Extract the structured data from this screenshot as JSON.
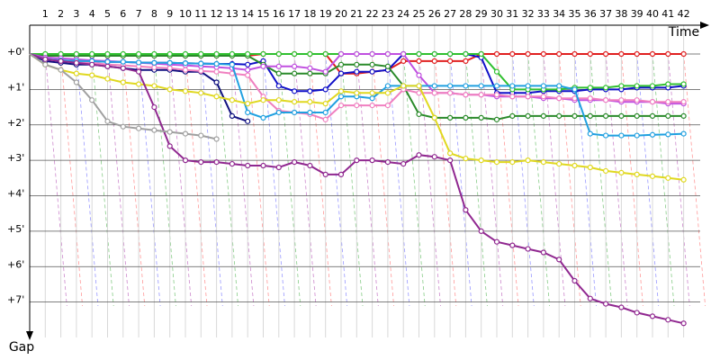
{
  "chart_data": {
    "type": "line",
    "x_label": "Time",
    "y_label": "Gap",
    "categories": [
      null,
      "1",
      "2",
      "3",
      "4",
      "5",
      "6",
      "7",
      "8",
      "9",
      "10",
      "11",
      "12",
      "13",
      "14",
      "15",
      "16",
      "17",
      "18",
      "19",
      "20",
      "21",
      "22",
      "23",
      "24",
      "25",
      "26",
      "27",
      "28",
      "29",
      "30",
      "31",
      "32",
      "33",
      "34",
      "35",
      "36",
      "37",
      "38",
      "39",
      "40",
      "41",
      "42"
    ],
    "ylim": [
      0,
      8
    ],
    "yticks": [
      {
        "value": 0,
        "label": "+0'"
      },
      {
        "value": 1,
        "label": "+1'"
      },
      {
        "value": 2,
        "label": "+2'"
      },
      {
        "value": 3,
        "label": "+3'"
      },
      {
        "value": 4,
        "label": "+4'"
      },
      {
        "value": 5,
        "label": "+5'"
      },
      {
        "value": 6,
        "label": "+6'"
      },
      {
        "value": 7,
        "label": "+7'"
      }
    ],
    "grid": true,
    "series": [
      {
        "color": "#e02020",
        "values": [
          0,
          0.05,
          0.05,
          0.05,
          0.05,
          0.05,
          0.05,
          0.05,
          0.05,
          0.05,
          0.05,
          0.05,
          0.05,
          0.05,
          0.05,
          0,
          0,
          0,
          0,
          0,
          0.55,
          0.55,
          0.5,
          0.45,
          0.2,
          0.2,
          0.2,
          0.2,
          0.2,
          0,
          0,
          0,
          0,
          0,
          0,
          0,
          0,
          0,
          0,
          0,
          0,
          0,
          0
        ]
      },
      {
        "color": "#1010c8",
        "values": [
          0,
          0.15,
          0.18,
          0.2,
          0.2,
          0.22,
          0.22,
          0.24,
          0.25,
          0.25,
          0.26,
          0.27,
          0.28,
          0.28,
          0.3,
          0.2,
          0.9,
          1.05,
          1.05,
          1.0,
          0.55,
          0.5,
          0.5,
          0.45,
          0,
          0,
          0,
          0,
          0,
          0.1,
          1.1,
          1.1,
          1.1,
          1.05,
          1.05,
          1.05,
          1.0,
          1.0,
          1.0,
          0.95,
          0.95,
          0.95,
          0.9
        ]
      },
      {
        "color": "#101080",
        "values": [
          0,
          0.2,
          0.25,
          0.3,
          0.3,
          0.35,
          0.4,
          0.45,
          0.45,
          0.45,
          0.5,
          0.5,
          0.8,
          1.75,
          1.9,
          null,
          null,
          null,
          null,
          null,
          null,
          null,
          null,
          null,
          null,
          null,
          null,
          null,
          null,
          null,
          null,
          null,
          null,
          null,
          null,
          null,
          null,
          null,
          null,
          null,
          null,
          null,
          null
        ]
      },
      {
        "color": "#2a8a2a",
        "values": [
          0,
          0.05,
          0.05,
          0.05,
          0.05,
          0.05,
          0.05,
          0.05,
          0.05,
          0.05,
          0.05,
          0.05,
          0.05,
          0.05,
          0.05,
          0.3,
          0.55,
          0.55,
          0.55,
          0.55,
          0.3,
          0.3,
          0.3,
          0.35,
          0.9,
          1.7,
          1.8,
          1.8,
          1.8,
          1.8,
          1.85,
          1.75,
          1.75,
          1.75,
          1.75,
          1.75,
          1.75,
          1.75,
          1.75,
          1.75,
          1.75,
          1.75,
          1.75
        ]
      },
      {
        "color": "#30c030",
        "values": [
          0,
          0,
          0,
          0,
          0,
          0,
          0,
          0,
          0,
          0,
          0,
          0,
          0,
          0,
          0,
          0,
          0,
          0,
          0,
          0,
          0,
          0,
          0,
          0,
          0,
          0,
          0,
          0,
          0,
          0,
          0.5,
          1.0,
          1.0,
          1.0,
          1.0,
          0.95,
          0.95,
          0.95,
          0.9,
          0.9,
          0.9,
          0.85,
          0.85
        ]
      },
      {
        "color": "#c050e0",
        "values": [
          0,
          0.1,
          0.12,
          0.15,
          0.18,
          0.2,
          0.22,
          0.25,
          0.27,
          0.3,
          0.32,
          0.35,
          0.37,
          0.4,
          0.45,
          0.35,
          0.35,
          0.35,
          0.4,
          0.5,
          0,
          0,
          0,
          0,
          0,
          0.6,
          1.1,
          1.1,
          1.15,
          1.15,
          1.2,
          1.2,
          1.2,
          1.25,
          1.25,
          1.3,
          1.3,
          1.3,
          1.35,
          1.35,
          1.35,
          1.4,
          1.4
        ]
      },
      {
        "color": "#f080c0",
        "values": [
          0,
          0.15,
          0.2,
          0.22,
          0.25,
          0.3,
          0.32,
          0.35,
          0.38,
          0.4,
          0.45,
          0.48,
          0.5,
          0.55,
          0.6,
          1.2,
          1.6,
          1.65,
          1.7,
          1.85,
          1.45,
          1.45,
          1.45,
          1.45,
          1.0,
          1.1,
          1.1,
          1.1,
          1.15,
          1.15,
          1.15,
          1.2,
          1.2,
          1.2,
          1.25,
          1.25,
          1.25,
          1.3,
          1.3,
          1.3,
          1.35,
          1.35,
          1.35
        ]
      },
      {
        "color": "#20a0e0",
        "values": [
          0,
          0.15,
          0.18,
          0.2,
          0.2,
          0.22,
          0.22,
          0.24,
          0.25,
          0.25,
          0.26,
          0.27,
          0.28,
          0.3,
          1.65,
          1.8,
          1.65,
          1.65,
          1.65,
          1.65,
          1.2,
          1.2,
          1.25,
          0.9,
          0.9,
          0.9,
          0.9,
          0.9,
          0.9,
          0.9,
          0.9,
          0.9,
          0.9,
          0.9,
          0.9,
          1.0,
          2.25,
          2.3,
          2.3,
          2.3,
          2.28,
          2.27,
          2.25
        ]
      },
      {
        "color": "#e0d820",
        "values": [
          0,
          0.3,
          0.45,
          0.55,
          0.6,
          0.7,
          0.8,
          0.85,
          0.9,
          1.0,
          1.05,
          1.1,
          1.2,
          1.3,
          1.4,
          1.3,
          1.3,
          1.35,
          1.35,
          1.4,
          1.05,
          1.1,
          1.1,
          1.1,
          0.9,
          0.9,
          1.8,
          2.8,
          2.95,
          3.0,
          3.05,
          3.05,
          3.0,
          3.05,
          3.1,
          3.15,
          3.2,
          3.3,
          3.35,
          3.4,
          3.45,
          3.5,
          3.55
        ]
      },
      {
        "color": "#902890",
        "values": [
          0,
          0.15,
          0.2,
          0.25,
          0.3,
          0.35,
          0.4,
          0.5,
          1.5,
          2.6,
          3.0,
          3.05,
          3.05,
          3.1,
          3.15,
          3.15,
          3.2,
          3.05,
          3.15,
          3.4,
          3.4,
          3.0,
          3.0,
          3.05,
          3.1,
          2.85,
          2.9,
          3.0,
          4.4,
          5.0,
          5.3,
          5.4,
          5.5,
          5.6,
          5.8,
          6.4,
          6.9,
          7.05,
          7.15,
          7.3,
          7.4,
          7.5,
          7.6
        ]
      },
      {
        "color": "#a0a0a0",
        "values": [
          0,
          0.3,
          0.45,
          0.8,
          1.3,
          1.9,
          2.05,
          2.1,
          2.15,
          2.2,
          2.25,
          2.3,
          2.4,
          null,
          null,
          null,
          null,
          null,
          null,
          null,
          null,
          null,
          null,
          null,
          null,
          null,
          null,
          null,
          null,
          null,
          null,
          null,
          null,
          null,
          null,
          null,
          null,
          null,
          null,
          null,
          null,
          null,
          null
        ]
      }
    ]
  }
}
